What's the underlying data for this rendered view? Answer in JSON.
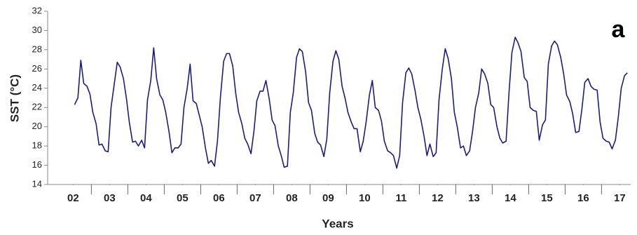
{
  "chart_data": {
    "type": "line",
    "annotation": "a",
    "xlabel": "Years",
    "ylabel": "SST (°C)",
    "color": "#1c1c80",
    "xlim": [
      2001.8,
      2017.8
    ],
    "ylim": [
      14,
      32
    ],
    "yticks": [
      14,
      16,
      18,
      20,
      22,
      24,
      26,
      28,
      30,
      32
    ],
    "xticks": [
      {
        "value": 2002.5,
        "label": "02"
      },
      {
        "value": 2003.5,
        "label": "03"
      },
      {
        "value": 2004.5,
        "label": "04"
      },
      {
        "value": 2005.5,
        "label": "05"
      },
      {
        "value": 2006.5,
        "label": "06"
      },
      {
        "value": 2007.5,
        "label": "07"
      },
      {
        "value": 2008.5,
        "label": "08"
      },
      {
        "value": 2009.5,
        "label": "09"
      },
      {
        "value": 2010.5,
        "label": "10"
      },
      {
        "value": 2011.5,
        "label": "11"
      },
      {
        "value": 2012.5,
        "label": "12"
      },
      {
        "value": 2013.5,
        "label": "13"
      },
      {
        "value": 2014.5,
        "label": "14"
      },
      {
        "value": 2015.5,
        "label": "15"
      },
      {
        "value": 2016.5,
        "label": "16"
      },
      {
        "value": 2017.5,
        "label": "17"
      }
    ],
    "x": [
      2002.54,
      2002.63,
      2002.71,
      2002.79,
      2002.88,
      2002.96,
      2003.04,
      2003.13,
      2003.21,
      2003.29,
      2003.38,
      2003.46,
      2003.54,
      2003.63,
      2003.71,
      2003.79,
      2003.88,
      2003.96,
      2004.04,
      2004.13,
      2004.21,
      2004.29,
      2004.38,
      2004.46,
      2004.54,
      2004.63,
      2004.71,
      2004.79,
      2004.88,
      2004.96,
      2005.04,
      2005.13,
      2005.21,
      2005.29,
      2005.38,
      2005.46,
      2005.54,
      2005.63,
      2005.71,
      2005.79,
      2005.88,
      2005.96,
      2006.04,
      2006.13,
      2006.21,
      2006.29,
      2006.38,
      2006.46,
      2006.54,
      2006.63,
      2006.71,
      2006.79,
      2006.88,
      2006.96,
      2007.04,
      2007.13,
      2007.21,
      2007.29,
      2007.38,
      2007.46,
      2007.54,
      2007.63,
      2007.71,
      2007.79,
      2007.88,
      2007.96,
      2008.04,
      2008.13,
      2008.21,
      2008.29,
      2008.38,
      2008.46,
      2008.54,
      2008.63,
      2008.71,
      2008.79,
      2008.88,
      2008.96,
      2009.04,
      2009.13,
      2009.21,
      2009.29,
      2009.38,
      2009.46,
      2009.54,
      2009.63,
      2009.71,
      2009.79,
      2009.88,
      2009.96,
      2010.04,
      2010.13,
      2010.21,
      2010.29,
      2010.38,
      2010.46,
      2010.54,
      2010.63,
      2010.71,
      2010.79,
      2010.88,
      2010.96,
      2011.04,
      2011.13,
      2011.21,
      2011.29,
      2011.38,
      2011.46,
      2011.54,
      2011.63,
      2011.71,
      2011.79,
      2011.88,
      2011.96,
      2012.04,
      2012.13,
      2012.21,
      2012.29,
      2012.38,
      2012.46,
      2012.54,
      2012.63,
      2012.71,
      2012.79,
      2012.88,
      2012.96,
      2013.04,
      2013.13,
      2013.21,
      2013.29,
      2013.38,
      2013.46,
      2013.54,
      2013.63,
      2013.71,
      2013.79,
      2013.88,
      2013.96,
      2014.04,
      2014.13,
      2014.21,
      2014.29,
      2014.38,
      2014.46,
      2014.54,
      2014.63,
      2014.71,
      2014.79,
      2014.88,
      2014.96,
      2015.04,
      2015.13,
      2015.21,
      2015.29,
      2015.38,
      2015.46,
      2015.54,
      2015.63,
      2015.71,
      2015.79,
      2015.88,
      2015.96,
      2016.04,
      2016.13,
      2016.21,
      2016.29,
      2016.38,
      2016.46,
      2016.54,
      2016.63,
      2016.71,
      2016.79,
      2016.88,
      2016.96,
      2017.04,
      2017.13,
      2017.21,
      2017.29,
      2017.38,
      2017.46,
      2017.54,
      2017.63,
      2017.71
    ],
    "values": [
      22.3,
      23,
      26.9,
      24.5,
      24.2,
      23.4,
      21.5,
      20.3,
      18.1,
      18.2,
      17.5,
      17.4,
      22,
      24.5,
      26.7,
      26.2,
      25,
      23,
      20.5,
      18.4,
      18.5,
      18,
      18.6,
      17.8,
      22.8,
      24.8,
      28.2,
      25,
      23.3,
      22.8,
      21.5,
      19.5,
      17.3,
      17.8,
      17.8,
      18.2,
      22,
      24,
      26.5,
      22.7,
      22.4,
      21.2,
      20,
      17.8,
      16.2,
      16.5,
      15.9,
      18.5,
      23,
      26.8,
      27.6,
      27.6,
      26.3,
      23.5,
      21.5,
      20.3,
      18.8,
      18.2,
      17.2,
      19.5,
      22.7,
      23.7,
      23.7,
      24.8,
      22.9,
      20.7,
      20.1,
      18,
      17,
      15.8,
      15.9,
      21.5,
      23.5,
      27.2,
      28.1,
      27.8,
      25.7,
      22.5,
      21.7,
      19.3,
      18.4,
      18.1,
      16.9,
      18.7,
      23.5,
      26.8,
      27.9,
      27,
      24.2,
      23,
      21.5,
      20.5,
      19.8,
      19.8,
      17.4,
      18.5,
      20.5,
      23.3,
      24.8,
      22,
      21.7,
      20.6,
      18.5,
      17.5,
      17.3,
      17,
      15.7,
      17,
      22.5,
      25.6,
      26.1,
      25.5,
      23.8,
      22,
      20.8,
      19,
      17,
      18.2,
      16.9,
      17.3,
      22.8,
      26,
      28.1,
      27.1,
      25,
      21.5,
      20,
      17.8,
      18,
      17,
      17.5,
      19.5,
      22,
      23.5,
      26,
      25.5,
      24.5,
      22.3,
      22,
      20,
      18.8,
      18.3,
      18.5,
      23.5,
      27.7,
      29.3,
      28.7,
      27.8,
      25.1,
      24.7,
      22,
      21.7,
      21.6,
      18.6,
      20.2,
      20.7,
      26.5,
      28.4,
      28.9,
      28.5,
      27.2,
      25.5,
      23.3,
      22.6,
      21.3,
      19.4,
      19.5,
      21.8,
      24.6,
      25,
      24.2,
      23.9,
      23.8,
      20.5,
      18.8,
      18.5,
      18.4,
      17.7,
      18.6,
      21,
      24,
      25.3,
      25.6
    ]
  }
}
